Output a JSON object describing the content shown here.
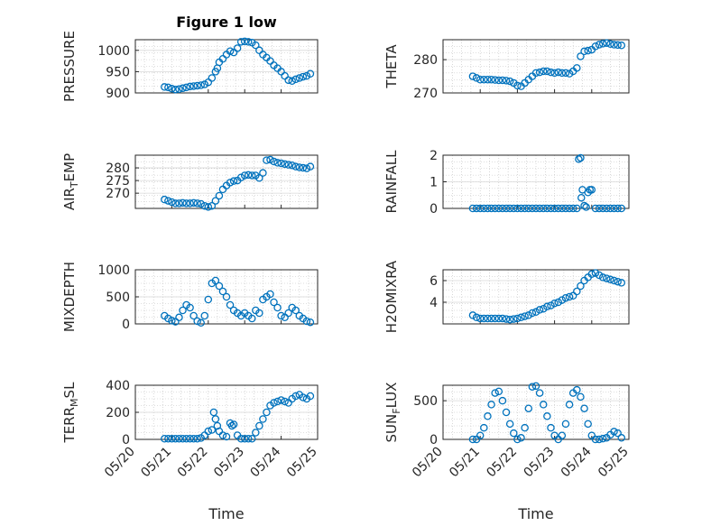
{
  "figure": {
    "title": "Figure 1 low",
    "marker_color": "#0072BD"
  },
  "chart_data": [
    {
      "id": "pressure",
      "type": "scatter",
      "ylabel": "PRESSURE",
      "ylim": [
        900,
        1025
      ],
      "yticks": [
        900,
        950,
        1000
      ],
      "xlim": [
        0,
        5
      ],
      "grid": "on",
      "x": [
        0.8,
        0.9,
        1.0,
        1.1,
        1.2,
        1.3,
        1.4,
        1.5,
        1.6,
        1.7,
        1.8,
        1.9,
        2.0,
        2.1,
        2.2,
        2.25,
        2.3,
        2.4,
        2.5,
        2.6,
        2.7,
        2.8,
        2.9,
        3.0,
        3.1,
        3.2,
        3.3,
        3.4,
        3.5,
        3.6,
        3.7,
        3.8,
        3.9,
        4.0,
        4.1,
        4.2,
        4.3,
        4.4,
        4.5,
        4.6,
        4.7,
        4.8
      ],
      "y": [
        914,
        913,
        910,
        908,
        909,
        911,
        913,
        915,
        916,
        917,
        918,
        920,
        925,
        935,
        950,
        958,
        972,
        980,
        990,
        998,
        995,
        1005,
        1020,
        1021,
        1020,
        1018,
        1012,
        1000,
        990,
        983,
        975,
        965,
        958,
        950,
        940,
        930,
        928,
        932,
        935,
        938,
        940,
        945
      ]
    },
    {
      "id": "theta",
      "type": "scatter",
      "ylabel": "THETA",
      "ylim": [
        270,
        286
      ],
      "yticks": [
        270,
        280
      ],
      "xlim": [
        0,
        5
      ],
      "grid": "on",
      "x": [
        0.8,
        0.9,
        1.0,
        1.1,
        1.2,
        1.3,
        1.4,
        1.5,
        1.6,
        1.7,
        1.8,
        1.9,
        2.0,
        2.1,
        2.2,
        2.3,
        2.4,
        2.5,
        2.6,
        2.7,
        2.8,
        2.9,
        3.0,
        3.1,
        3.2,
        3.3,
        3.4,
        3.5,
        3.6,
        3.7,
        3.8,
        3.9,
        4.0,
        4.1,
        4.2,
        4.3,
        4.4,
        4.5,
        4.6,
        4.7,
        4.8
      ],
      "y": [
        275,
        274.5,
        274,
        274,
        274,
        274,
        273.9,
        273.8,
        273.8,
        273.7,
        273.5,
        273,
        272.2,
        272,
        273,
        274,
        275,
        276,
        276.2,
        276.5,
        276.5,
        276.2,
        276,
        276.2,
        276,
        276,
        275.8,
        276.5,
        277.5,
        281,
        282.5,
        282.7,
        283,
        284,
        284.5,
        284.8,
        285,
        284.7,
        284.5,
        284.4,
        284.3
      ]
    },
    {
      "id": "air_temp",
      "type": "scatter",
      "ylabel": "AIR",
      "ylabel_sub": "T",
      "ylabel_tail": "EMP",
      "ylim": [
        264,
        285
      ],
      "yticks": [
        270,
        275,
        280
      ],
      "xlim": [
        0,
        5
      ],
      "grid": "on",
      "x": [
        0.8,
        0.9,
        1.0,
        1.1,
        1.2,
        1.3,
        1.4,
        1.5,
        1.6,
        1.7,
        1.8,
        1.9,
        2.0,
        2.1,
        2.2,
        2.3,
        2.4,
        2.5,
        2.6,
        2.7,
        2.8,
        2.9,
        3.0,
        3.1,
        3.2,
        3.3,
        3.4,
        3.5,
        3.6,
        3.7,
        3.8,
        3.9,
        4.0,
        4.1,
        4.2,
        4.3,
        4.4,
        4.5,
        4.6,
        4.7,
        4.8
      ],
      "y": [
        267.5,
        267,
        266.5,
        266,
        266,
        266.2,
        266,
        266,
        266.2,
        266,
        265.8,
        265,
        264.6,
        265,
        267,
        269,
        271.5,
        273,
        274.2,
        274.8,
        275,
        276.2,
        277,
        277.2,
        277,
        277,
        276,
        278,
        283,
        283.2,
        282.5,
        282,
        281.8,
        281.5,
        281.2,
        281,
        280.5,
        280.2,
        280,
        279.8,
        280.5
      ]
    },
    {
      "id": "rainfall",
      "type": "scatter",
      "ylabel": "RAINFALL",
      "ylim": [
        0,
        2
      ],
      "yticks": [
        0,
        1,
        2
      ],
      "xlim": [
        0,
        5
      ],
      "grid": "on",
      "x": [
        0.8,
        0.9,
        1.0,
        1.1,
        1.2,
        1.3,
        1.4,
        1.5,
        1.6,
        1.7,
        1.8,
        1.9,
        2.0,
        2.1,
        2.2,
        2.3,
        2.4,
        2.5,
        2.6,
        2.7,
        2.8,
        2.9,
        3.0,
        3.1,
        3.2,
        3.3,
        3.4,
        3.5,
        3.6,
        3.65,
        3.7,
        3.72,
        3.75,
        3.8,
        3.85,
        3.9,
        3.95,
        4.0,
        4.1,
        4.2,
        4.3,
        4.4,
        4.5,
        4.6,
        4.7,
        4.8
      ],
      "y": [
        0,
        0,
        0,
        0,
        0,
        0,
        0,
        0,
        0,
        0,
        0,
        0,
        0,
        0,
        0,
        0,
        0,
        0,
        0,
        0,
        0,
        0,
        0,
        0,
        0,
        0,
        0,
        0,
        0,
        1.85,
        1.9,
        0.4,
        0.7,
        0.1,
        0.05,
        0.6,
        0.7,
        0.7,
        0,
        0,
        0,
        0,
        0,
        0,
        0,
        0
      ]
    },
    {
      "id": "mixdepth",
      "type": "scatter",
      "ylabel": "MIXDEPTH",
      "ylim": [
        0,
        1000
      ],
      "yticks": [
        0,
        500,
        1000
      ],
      "xlim": [
        0,
        5
      ],
      "grid": "on",
      "x": [
        0.8,
        0.9,
        1.0,
        1.1,
        1.2,
        1.3,
        1.4,
        1.5,
        1.6,
        1.7,
        1.8,
        1.9,
        2.0,
        2.1,
        2.2,
        2.3,
        2.4,
        2.5,
        2.6,
        2.7,
        2.8,
        2.9,
        3.0,
        3.1,
        3.2,
        3.3,
        3.4,
        3.5,
        3.6,
        3.7,
        3.8,
        3.9,
        4.0,
        4.1,
        4.2,
        4.3,
        4.4,
        4.5,
        4.6,
        4.7,
        4.8
      ],
      "y": [
        150,
        100,
        60,
        40,
        120,
        250,
        350,
        300,
        150,
        50,
        20,
        150,
        450,
        750,
        800,
        700,
        600,
        500,
        350,
        250,
        200,
        150,
        200,
        150,
        100,
        250,
        200,
        450,
        500,
        550,
        400,
        300,
        150,
        120,
        200,
        300,
        250,
        150,
        100,
        50,
        30
      ]
    },
    {
      "id": "h2omixra",
      "type": "scatter",
      "ylabel": "H2OMIXRA",
      "ylim": [
        2,
        7
      ],
      "yticks": [
        4,
        6
      ],
      "xlim": [
        0,
        5
      ],
      "grid": "on",
      "x": [
        0.8,
        0.9,
        1.0,
        1.1,
        1.2,
        1.3,
        1.4,
        1.5,
        1.6,
        1.7,
        1.8,
        1.9,
        2.0,
        2.1,
        2.2,
        2.3,
        2.4,
        2.5,
        2.6,
        2.7,
        2.8,
        2.9,
        3.0,
        3.1,
        3.2,
        3.3,
        3.4,
        3.5,
        3.6,
        3.7,
        3.8,
        3.9,
        4.0,
        4.1,
        4.2,
        4.3,
        4.4,
        4.5,
        4.6,
        4.7,
        4.8
      ],
      "y": [
        2.8,
        2.6,
        2.5,
        2.5,
        2.5,
        2.5,
        2.5,
        2.5,
        2.5,
        2.45,
        2.4,
        2.45,
        2.5,
        2.6,
        2.7,
        2.8,
        3.0,
        3.1,
        3.3,
        3.4,
        3.6,
        3.7,
        3.9,
        4.0,
        4.2,
        4.4,
        4.5,
        4.6,
        5.0,
        5.5,
        6.0,
        6.3,
        6.6,
        6.7,
        6.5,
        6.3,
        6.2,
        6.1,
        6.0,
        5.9,
        5.8
      ]
    },
    {
      "id": "terr_msl",
      "type": "scatter",
      "ylabel": "TERR",
      "ylabel_sub": "M",
      "ylabel_tail": "SL",
      "ylim": [
        0,
        400
      ],
      "yticks": [
        0,
        200,
        400
      ],
      "xlim": [
        0,
        5
      ],
      "grid": "on",
      "x": [
        0.8,
        0.9,
        1.0,
        1.1,
        1.2,
        1.3,
        1.4,
        1.5,
        1.6,
        1.7,
        1.8,
        1.9,
        2.0,
        2.1,
        2.15,
        2.2,
        2.25,
        2.3,
        2.4,
        2.5,
        2.6,
        2.65,
        2.7,
        2.8,
        2.9,
        3.0,
        3.1,
        3.2,
        3.3,
        3.4,
        3.5,
        3.6,
        3.7,
        3.8,
        3.9,
        4.0,
        4.1,
        4.2,
        4.3,
        4.4,
        4.5,
        4.6,
        4.7,
        4.8
      ],
      "y": [
        5,
        5,
        5,
        5,
        5,
        5,
        5,
        5,
        5,
        5,
        10,
        30,
        60,
        70,
        200,
        150,
        100,
        60,
        30,
        20,
        120,
        100,
        110,
        30,
        5,
        5,
        5,
        5,
        50,
        100,
        150,
        200,
        250,
        270,
        280,
        290,
        280,
        270,
        300,
        320,
        330,
        310,
        300,
        320
      ]
    },
    {
      "id": "sun_flux",
      "type": "scatter",
      "ylabel": "SUN",
      "ylabel_sub": "F",
      "ylabel_tail": "LUX",
      "ylim": [
        0,
        700
      ],
      "yticks": [
        0,
        500
      ],
      "xlim": [
        0,
        5
      ],
      "grid": "on",
      "x": [
        0.8,
        0.9,
        1.0,
        1.1,
        1.2,
        1.3,
        1.4,
        1.5,
        1.6,
        1.7,
        1.8,
        1.9,
        2.0,
        2.1,
        2.2,
        2.3,
        2.4,
        2.5,
        2.6,
        2.7,
        2.8,
        2.9,
        3.0,
        3.1,
        3.2,
        3.3,
        3.4,
        3.5,
        3.6,
        3.7,
        3.8,
        3.9,
        4.0,
        4.1,
        4.2,
        4.3,
        4.4,
        4.5,
        4.6,
        4.7,
        4.8
      ],
      "y": [
        0,
        0,
        50,
        150,
        300,
        450,
        600,
        620,
        500,
        350,
        200,
        80,
        0,
        20,
        150,
        400,
        680,
        690,
        600,
        450,
        300,
        150,
        50,
        0,
        50,
        200,
        450,
        600,
        640,
        550,
        400,
        200,
        50,
        0,
        0,
        10,
        20,
        60,
        100,
        80,
        20
      ]
    }
  ],
  "xaxis": {
    "label": "Time",
    "ticks": [
      0,
      1,
      2,
      3,
      4,
      5
    ],
    "tick_labels": [
      "05/20",
      "05/21",
      "05/22",
      "05/23",
      "05/24",
      "05/25"
    ]
  }
}
